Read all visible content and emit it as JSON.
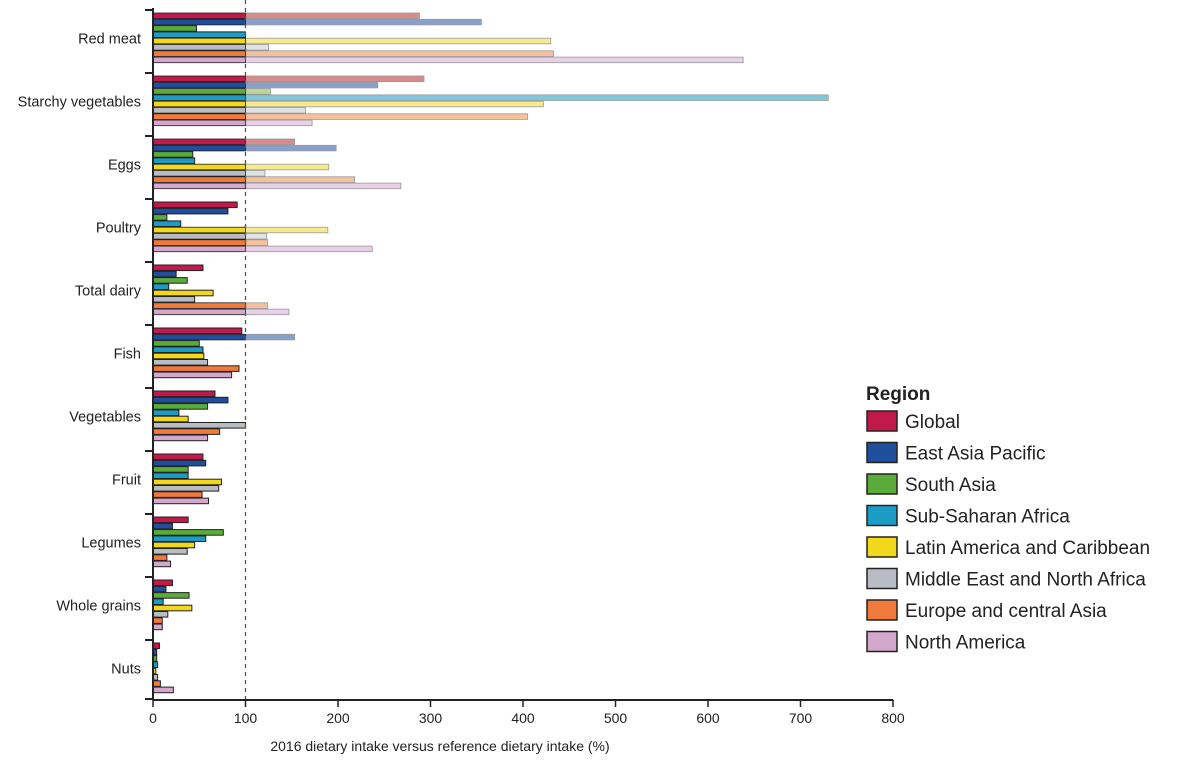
{
  "chart_data": {
    "type": "bar",
    "orientation": "horizontal",
    "title": "",
    "xlabel": "2016 dietary intake versus reference dietary intake (%)",
    "ylabel": "",
    "xlim": [
      0,
      800
    ],
    "xticks": [
      "0",
      "100",
      "200",
      "300",
      "400",
      "500",
      "600",
      "700",
      "800"
    ],
    "reference_line": 100,
    "legend_title": "Region",
    "legend_position": "right",
    "categories": [
      "Red meat",
      "Starchy vegetables",
      "Eggs",
      "Poultry",
      "Total dairy",
      "Fish",
      "Vegetables",
      "Fruit",
      "Legumes",
      "Whole grains",
      "Nuts"
    ],
    "series": [
      {
        "name": "Global",
        "color": "#c0194a",
        "pale": "#d98a8a",
        "values": [
          288,
          293,
          153,
          91,
          54,
          96,
          67,
          54,
          38,
          21,
          7
        ]
      },
      {
        "name": "East Asia Pacific",
        "color": "#1f4e9c",
        "pale": "#8aa0cc",
        "values": [
          355,
          243,
          198,
          81,
          25,
          153,
          81,
          57,
          21,
          14,
          4
        ]
      },
      {
        "name": "South Asia",
        "color": "#5aab3a",
        "pale": "#b8d89a",
        "values": [
          47,
          127,
          43,
          15,
          37,
          50,
          59,
          38,
          76,
          39,
          4
        ]
      },
      {
        "name": "Sub-Saharan Africa",
        "color": "#1a9cc4",
        "pale": "#7fc8dc",
        "values": [
          100,
          730,
          45,
          30,
          17,
          54,
          28,
          38,
          57,
          11,
          5
        ]
      },
      {
        "name": "Latin America and Caribbean",
        "color": "#f2d81c",
        "pale": "#f5ea90",
        "values": [
          430,
          422,
          190,
          189,
          65,
          55,
          38,
          74,
          45,
          42,
          3
        ]
      },
      {
        "name": "Middle East and North Africa",
        "color": "#b8bcc4",
        "pale": "#dfe2e6",
        "values": [
          125,
          165,
          121,
          123,
          45,
          59,
          100,
          71,
          37,
          16,
          5
        ]
      },
      {
        "name": "Europe and central  Asia",
        "color": "#ef7a3c",
        "pale": "#f5c09a",
        "values": [
          433,
          405,
          218,
          124,
          124,
          93,
          72,
          53,
          15,
          10,
          8
        ]
      },
      {
        "name": "North America",
        "color": "#d4a8cc",
        "pale": "#e8d0e6",
        "values": [
          638,
          172,
          268,
          237,
          147,
          85,
          59,
          60,
          19,
          10,
          22
        ]
      }
    ]
  }
}
